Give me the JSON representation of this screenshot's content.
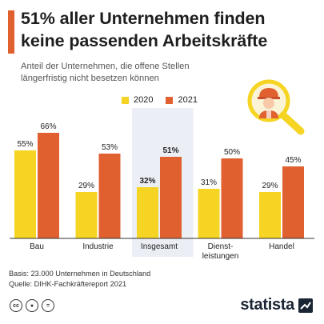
{
  "header": {
    "title_line1": "51% aller Unternehmen finden",
    "title_line2": "keine passenden Arbeitskräfte",
    "subtitle_line1": "Anteil der Unternehmen, die offene Stellen",
    "subtitle_line2": "längerfristig nicht besetzen können"
  },
  "colors": {
    "accent": "#e06030",
    "series_2020": "#f5d423",
    "series_2021": "#e06030",
    "highlight_bg": "#eceef6",
    "baseline": "#333333"
  },
  "illustration": {
    "icon": "magnifier-worker-icon"
  },
  "chart_data": {
    "type": "bar",
    "title": "51% aller Unternehmen finden keine passenden Arbeitskräfte",
    "subtitle": "Anteil der Unternehmen, die offene Stellen längerfristig nicht besetzen können",
    "categories": [
      "Bau",
      "Industrie",
      "Insgesamt",
      "Dienst-leistungen",
      "Handel"
    ],
    "category_lines": [
      [
        "Bau"
      ],
      [
        "Industrie"
      ],
      [
        "Insgesamt"
      ],
      [
        "Dienst-",
        "leistungen"
      ],
      [
        "Handel"
      ]
    ],
    "highlight_category": "Insgesamt",
    "series": [
      {
        "name": "2020",
        "values": [
          55,
          29,
          32,
          31,
          29
        ],
        "labels": [
          "55%",
          "29%",
          "32%",
          "31%",
          "29%"
        ]
      },
      {
        "name": "2021",
        "values": [
          66,
          53,
          51,
          50,
          45
        ],
        "labels": [
          "66%",
          "53%",
          "51%",
          "50%",
          "45%"
        ]
      }
    ],
    "unit": "%",
    "ylim": [
      0,
      70
    ],
    "grid": false,
    "legend_position": "top"
  },
  "footer": {
    "basis": "Basis: 23.000 Unternehmen in Deutschland",
    "source": "Quelle: DIHK-Fachkräftereport 2021"
  },
  "license_icons": [
    "cc-icon",
    "by-icon",
    "nd-icon"
  ],
  "brand": {
    "name": "statista"
  }
}
